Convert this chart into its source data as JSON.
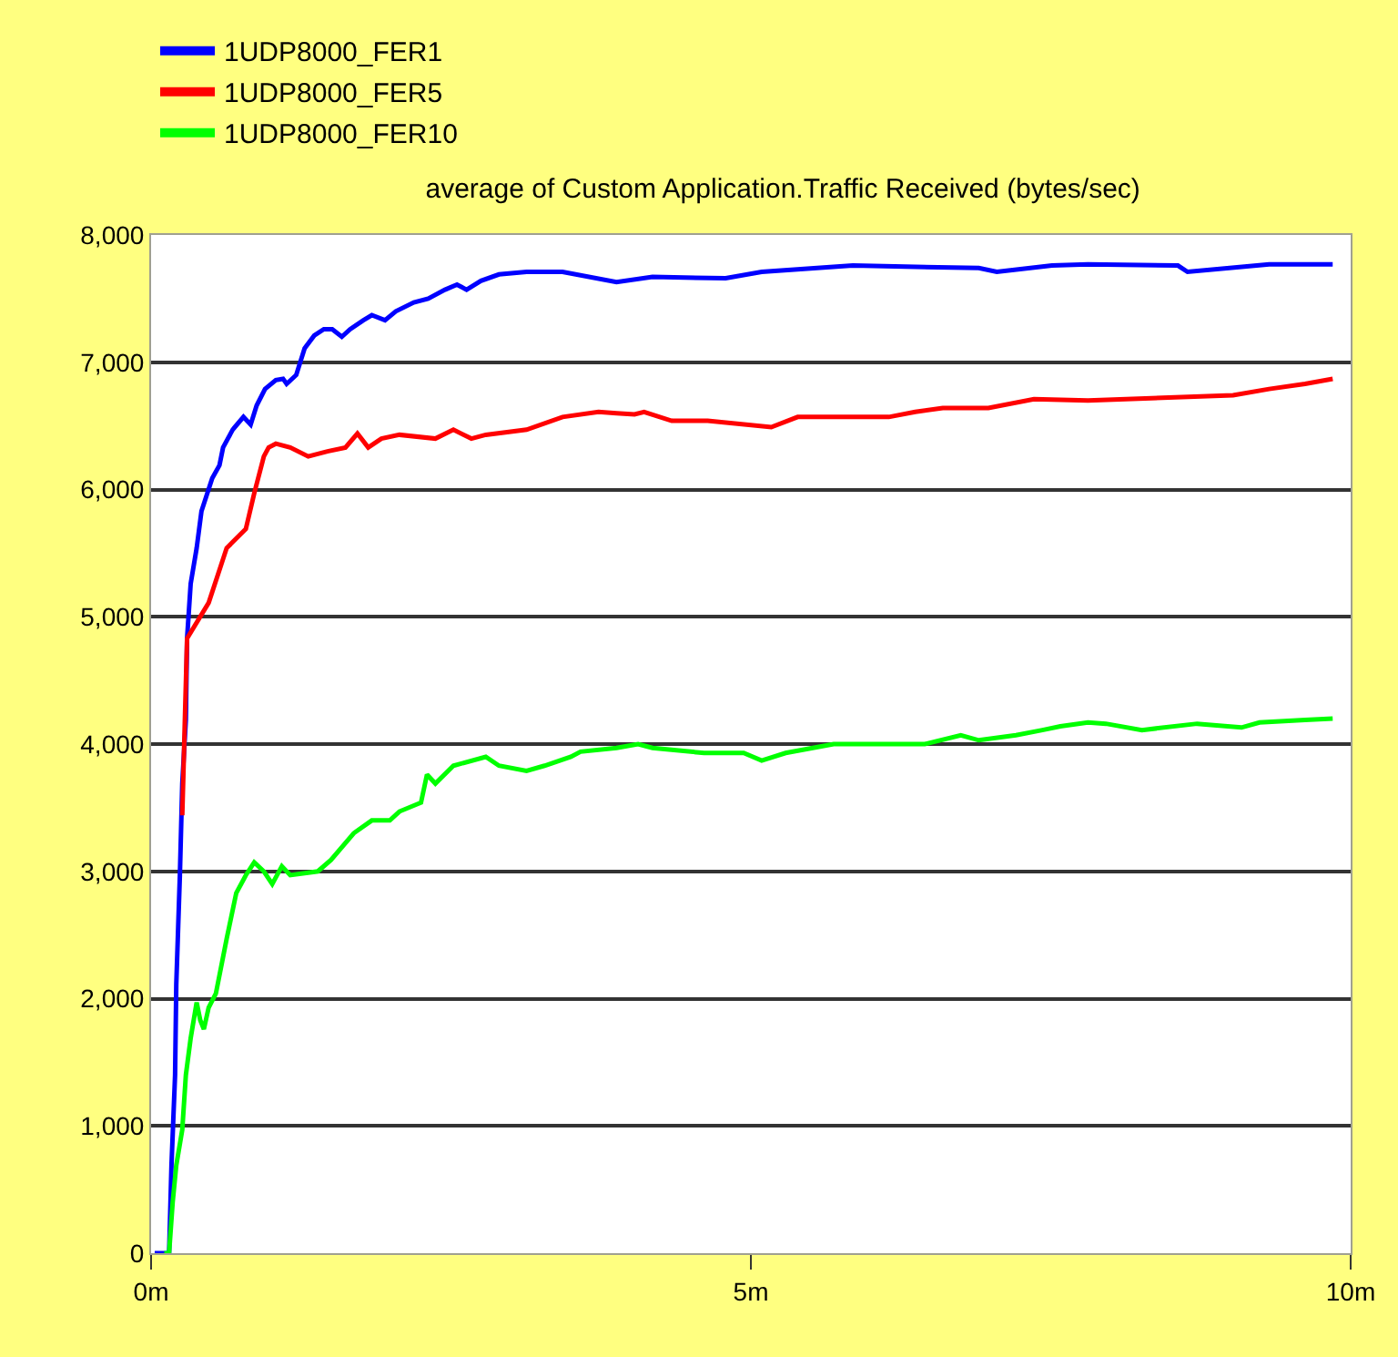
{
  "chart_data": {
    "type": "line",
    "title": "average of Custom Application.Traffic Received (bytes/sec)",
    "xlim": [
      0,
      10
    ],
    "xticks": [
      {
        "value": 0,
        "label": "0m"
      },
      {
        "value": 5,
        "label": "5m"
      },
      {
        "value": 10,
        "label": "10m"
      }
    ],
    "ylim": [
      0,
      8000
    ],
    "yticks": [
      {
        "value": 0,
        "label": "0"
      },
      {
        "value": 1000,
        "label": "1,000"
      },
      {
        "value": 2000,
        "label": "2,000"
      },
      {
        "value": 3000,
        "label": "3,000"
      },
      {
        "value": 4000,
        "label": "4,000"
      },
      {
        "value": 5000,
        "label": "5,000"
      },
      {
        "value": 6000,
        "label": "6,000"
      },
      {
        "value": 7000,
        "label": "7,000"
      },
      {
        "value": 8000,
        "label": "8,000"
      }
    ],
    "grid": "y",
    "legend": "top left",
    "marker": "none",
    "line_style": "solid",
    "series": [
      {
        "name": "1UDP8000_FER1",
        "color": "#0000ff",
        "x": [
          0.03,
          0.15,
          0.17,
          0.2,
          0.21,
          0.24,
          0.26,
          0.29,
          0.3,
          0.33,
          0.38,
          0.42,
          0.51,
          0.57,
          0.6,
          0.68,
          0.77,
          0.83,
          0.88,
          0.95,
          1.04,
          1.1,
          1.13,
          1.21,
          1.28,
          1.36,
          1.44,
          1.51,
          1.59,
          1.66,
          1.77,
          1.84,
          1.95,
          2.04,
          2.19,
          2.31,
          2.45,
          2.55,
          2.63,
          2.75,
          2.9,
          3.13,
          3.43,
          3.88,
          4.18,
          4.79,
          5.09,
          5.85,
          6.9,
          7.05,
          7.51,
          7.81,
          8.56,
          8.64,
          9.32,
          9.85
        ],
        "values": [
          0,
          0,
          690,
          1400,
          2110,
          2970,
          3690,
          4190,
          4830,
          5260,
          5540,
          5830,
          6090,
          6190,
          6330,
          6470,
          6570,
          6510,
          6660,
          6790,
          6860,
          6870,
          6830,
          6900,
          7110,
          7210,
          7260,
          7260,
          7200,
          7260,
          7330,
          7370,
          7330,
          7400,
          7470,
          7500,
          7570,
          7610,
          7570,
          7640,
          7690,
          7710,
          7710,
          7630,
          7670,
          7660,
          7710,
          7760,
          7740,
          7710,
          7760,
          7770,
          7760,
          7710,
          7770,
          7770
        ]
      },
      {
        "name": "1UDP8000_FER5",
        "color": "#ff0000",
        "x": [
          0.26,
          0.3,
          0.48,
          0.63,
          0.79,
          0.86,
          0.94,
          0.98,
          1.04,
          1.16,
          1.31,
          1.47,
          1.62,
          1.72,
          1.81,
          1.92,
          2.07,
          2.37,
          2.52,
          2.67,
          2.79,
          3.13,
          3.43,
          3.73,
          3.88,
          4.03,
          4.11,
          4.34,
          4.64,
          5.17,
          5.39,
          6.15,
          6.37,
          6.6,
          6.98,
          7.36,
          7.81,
          9.02,
          9.32,
          9.62,
          9.85
        ],
        "values": [
          3440,
          4830,
          5110,
          5540,
          5690,
          5970,
          6260,
          6330,
          6360,
          6330,
          6260,
          6300,
          6330,
          6440,
          6330,
          6400,
          6430,
          6400,
          6470,
          6400,
          6430,
          6470,
          6570,
          6610,
          6600,
          6590,
          6610,
          6540,
          6540,
          6490,
          6570,
          6570,
          6610,
          6640,
          6640,
          6710,
          6700,
          6740,
          6790,
          6830,
          6870
        ]
      },
      {
        "name": "1UDP8000_FER10",
        "color": "#00ff00",
        "x": [
          0.11,
          0.15,
          0.18,
          0.21,
          0.26,
          0.29,
          0.33,
          0.38,
          0.41,
          0.44,
          0.48,
          0.54,
          0.63,
          0.71,
          0.79,
          0.86,
          0.94,
          1.01,
          1.09,
          1.16,
          1.39,
          1.5,
          1.69,
          1.84,
          1.99,
          2.07,
          2.25,
          2.3,
          2.37,
          2.52,
          2.79,
          2.9,
          3.13,
          3.28,
          3.5,
          3.58,
          3.88,
          4.06,
          4.18,
          4.61,
          4.94,
          5.09,
          5.29,
          5.69,
          6.45,
          6.75,
          6.9,
          7.21,
          7.43,
          7.58,
          7.81,
          7.96,
          8.26,
          8.72,
          9.09,
          9.24,
          9.62,
          9.85
        ],
        "values": [
          0,
          0,
          400,
          690,
          970,
          1400,
          1690,
          1970,
          1830,
          1760,
          1930,
          2040,
          2470,
          2830,
          2970,
          3070,
          3000,
          2900,
          3040,
          2970,
          3000,
          3090,
          3300,
          3400,
          3400,
          3470,
          3540,
          3760,
          3690,
          3830,
          3900,
          3830,
          3790,
          3830,
          3900,
          3940,
          3970,
          4000,
          3970,
          3930,
          3930,
          3870,
          3930,
          4000,
          4000,
          4070,
          4030,
          4070,
          4110,
          4140,
          4170,
          4160,
          4110,
          4160,
          4130,
          4170,
          4190,
          4200
        ]
      }
    ]
  }
}
